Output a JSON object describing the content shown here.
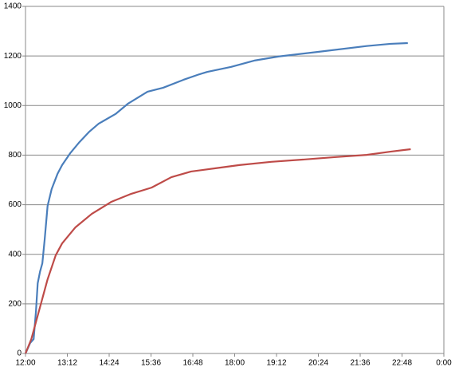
{
  "chart_data": {
    "type": "line",
    "xlim": [
      0,
      720
    ],
    "xticks": [
      {
        "value": 0,
        "label": "12:00"
      },
      {
        "value": 72,
        "label": "13:12"
      },
      {
        "value": 144,
        "label": "14:24"
      },
      {
        "value": 216,
        "label": "15:36"
      },
      {
        "value": 288,
        "label": "16:48"
      },
      {
        "value": 360,
        "label": "18:00"
      },
      {
        "value": 432,
        "label": "19:12"
      },
      {
        "value": 504,
        "label": "20:24"
      },
      {
        "value": 576,
        "label": "21:36"
      },
      {
        "value": 648,
        "label": "22:48"
      },
      {
        "value": 720,
        "label": "0:00"
      }
    ],
    "ylim": [
      0,
      1400
    ],
    "yticks": [
      0,
      200,
      400,
      600,
      800,
      1000,
      1200,
      1400
    ],
    "grid": true,
    "series": [
      {
        "color": "#4a7ebb",
        "x": [
          0,
          8,
          14,
          18,
          21,
          25,
          29,
          33,
          38,
          45,
          55,
          63,
          77,
          93,
          110,
          126,
          155,
          176,
          210,
          237,
          272,
          299,
          313,
          354,
          395,
          436,
          505,
          587,
          628,
          658
        ],
        "values": [
          0,
          42,
          58,
          170,
          283,
          330,
          364,
          460,
          595,
          663,
          724,
          760,
          808,
          853,
          895,
          927,
          966,
          1007,
          1056,
          1072,
          1104,
          1126,
          1136,
          1156,
          1182,
          1198,
          1217,
          1240,
          1249,
          1252
        ]
      },
      {
        "color": "#be4b48",
        "x": [
          0,
          10,
          25,
          38,
          52,
          63,
          86,
          114,
          148,
          182,
          217,
          251,
          285,
          327,
          368,
          423,
          477,
          532,
          587,
          628,
          663
        ],
        "values": [
          0,
          58,
          187,
          299,
          396,
          444,
          509,
          563,
          612,
          644,
          669,
          711,
          734,
          747,
          760,
          773,
          782,
          792,
          801,
          814,
          824
        ]
      }
    ]
  }
}
